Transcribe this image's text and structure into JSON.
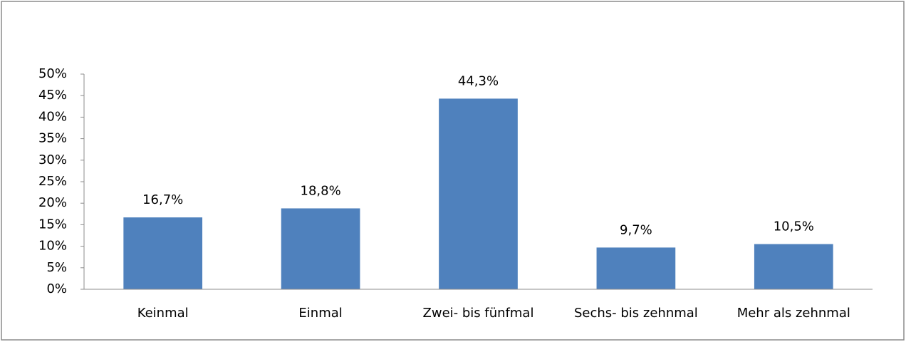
{
  "chart_data": {
    "type": "bar",
    "categories": [
      "Keinmal",
      "Einmal",
      "Zwei- bis fünfmal",
      "Sechs- bis zehnmal",
      "Mehr als zehnmal"
    ],
    "values": [
      16.7,
      18.8,
      44.3,
      9.7,
      10.5
    ],
    "value_labels": [
      "16,7%",
      "18,8%",
      "44,3%",
      "9,7%",
      "10,5%"
    ],
    "color": "#4f81bd",
    "ylim": [
      0,
      50
    ],
    "yticks": [
      {
        "value": 0,
        "label": "0%"
      },
      {
        "value": 5,
        "label": "5%"
      },
      {
        "value": 10,
        "label": "10%"
      },
      {
        "value": 15,
        "label": "15%"
      },
      {
        "value": 20,
        "label": "20%"
      },
      {
        "value": 25,
        "label": "25%"
      },
      {
        "value": 30,
        "label": "30%"
      },
      {
        "value": 35,
        "label": "35%"
      },
      {
        "value": 40,
        "label": "40%"
      },
      {
        "value": 45,
        "label": "45%"
      },
      {
        "value": 50,
        "label": "50%"
      }
    ],
    "grid": false
  }
}
